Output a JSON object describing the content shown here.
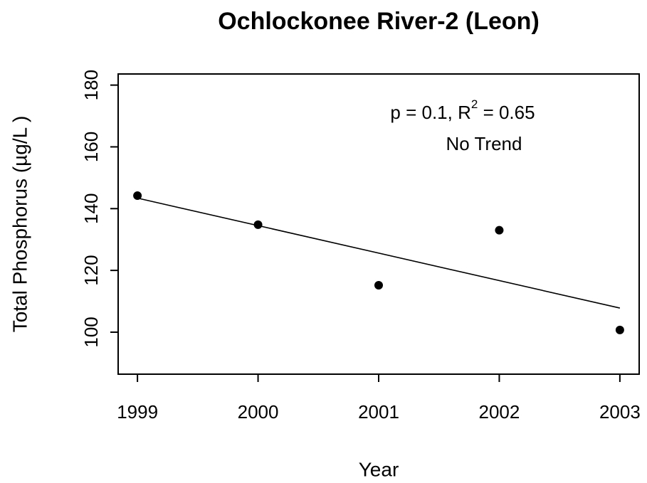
{
  "chart_data": {
    "type": "scatter",
    "title": "Ochlockonee River-2 (Leon)",
    "xlabel": "Year",
    "ylabel": "Total Phosphorus (µg/L )",
    "x": [
      1999,
      2000,
      2001,
      2002,
      2003
    ],
    "series": [
      {
        "color": "#000000",
        "values": [
          144.2,
          134.8,
          115.2,
          133,
          100.7
        ]
      }
    ],
    "trend": {
      "color": "#000000",
      "x": [
        1999,
        2003
      ],
      "values": [
        143.4,
        107.8
      ]
    },
    "annotations": [
      [
        "p = 0.1, R",
        "2",
        " = 0.65"
      ],
      "No Trend"
    ],
    "xlim": [
      1998.84,
      2003.16
    ],
    "xticks": [
      1999,
      2000,
      2001,
      2002,
      2003
    ],
    "ylim": [
      86.4,
      183.6
    ],
    "yticks": [
      100,
      120,
      140,
      160,
      180
    ]
  }
}
